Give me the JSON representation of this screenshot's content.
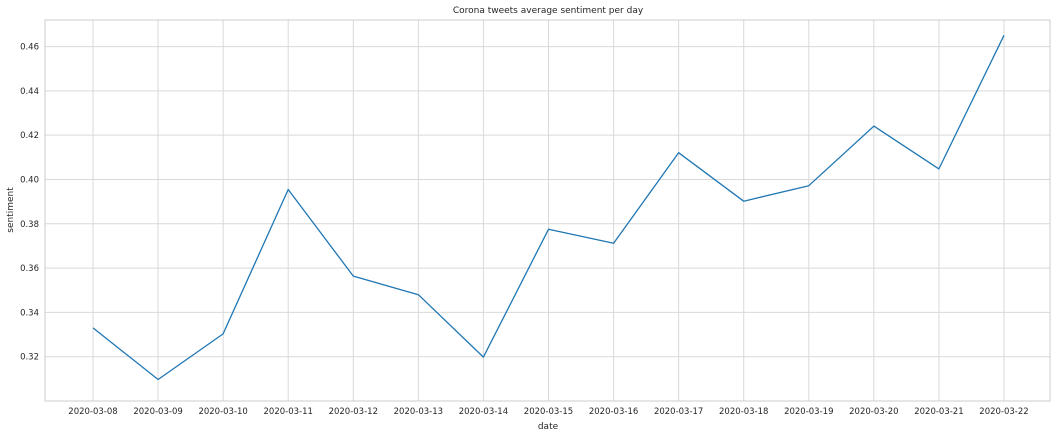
{
  "chart_data": {
    "type": "line",
    "title": "Corona tweets average sentiment per day",
    "xlabel": "date",
    "ylabel": "sentiment",
    "x": [
      "2020-03-08",
      "2020-03-09",
      "2020-03-10",
      "2020-03-11",
      "2020-03-12",
      "2020-03-13",
      "2020-03-14",
      "2020-03-15",
      "2020-03-16",
      "2020-03-17",
      "2020-03-18",
      "2020-03-19",
      "2020-03-20",
      "2020-03-21",
      "2020-03-22"
    ],
    "series": [
      {
        "values": [
          0.333,
          0.3097,
          0.3303,
          0.3955,
          0.3564,
          0.348,
          0.3198,
          0.3775,
          0.3712,
          0.4121,
          0.3902,
          0.3972,
          0.4241,
          0.4048,
          0.4651
        ]
      }
    ],
    "ylim": [
      0.3,
      0.472
    ],
    "yticks": [
      "0.32",
      "0.34",
      "0.36",
      "0.38",
      "0.40",
      "0.42",
      "0.44",
      "0.46"
    ],
    "grid": true,
    "line_color": "#1f77b4",
    "grid_color": "#d9d9d9"
  }
}
